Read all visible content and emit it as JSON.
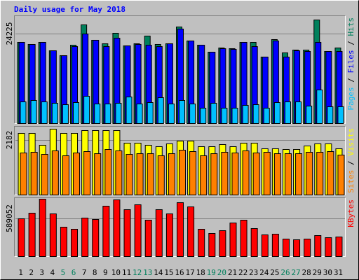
{
  "chart_data": [
    {
      "type": "bar",
      "title": "Daily usage for May 2018",
      "categories": [
        "1",
        "2",
        "3",
        "4",
        "5",
        "6",
        "7",
        "8",
        "9",
        "10",
        "11",
        "12",
        "13",
        "14",
        "15",
        "16",
        "17",
        "18",
        "19",
        "20",
        "21",
        "22",
        "23",
        "24",
        "25",
        "26",
        "27",
        "28",
        "29",
        "30",
        "31"
      ],
      "category_colors": [
        "#000000",
        "#000000",
        "#000000",
        "#000000",
        "#00805c",
        "#00805c",
        "#000000",
        "#000000",
        "#000000",
        "#000000",
        "#000000",
        "#00805c",
        "#00805c",
        "#000000",
        "#000000",
        "#000000",
        "#000000",
        "#000000",
        "#00805c",
        "#00805c",
        "#000000",
        "#000000",
        "#000000",
        "#000000",
        "#000000",
        "#00805c",
        "#00805c",
        "#000000",
        "#000000",
        "#000000",
        "#000000"
      ],
      "legend_separator": " / ",
      "ylim": [
        0,
        29145
      ],
      "yticks": [
        24225
      ],
      "series": [
        {
          "name": "Hits",
          "color": "#00805c",
          "values": [
            21954,
            21386,
            21954,
            19683,
            18358,
            21197,
            26686,
            22522,
            21576,
            24415,
            21008,
            21576,
            23658,
            21386,
            21576,
            26118,
            22333,
            21197,
            19305,
            20440,
            20251,
            21954,
            21954,
            17980,
            22711,
            19115,
            19872,
            19872,
            28010,
            19494,
            20440
          ]
        },
        {
          "name": "Files",
          "color": "#0000ff",
          "values": [
            21954,
            21386,
            21954,
            19683,
            18358,
            20819,
            24225,
            22522,
            20819,
            23090,
            21008,
            21386,
            21197,
            20819,
            21576,
            25550,
            22333,
            21197,
            19305,
            20251,
            20062,
            21954,
            20819,
            17980,
            22333,
            17980,
            19683,
            19494,
            21954,
            19494,
            19494
          ]
        },
        {
          "name": "Pages",
          "color": "#00c0ff",
          "values": [
            5867,
            6246,
            5867,
            5489,
            5110,
            5678,
            7381,
            5299,
            5299,
            5489,
            7192,
            5299,
            5678,
            7003,
            5299,
            6246,
            5299,
            4164,
            5489,
            4164,
            4164,
            4921,
            5110,
            4164,
            5678,
            5867,
            5867,
            4732,
            9085,
            4542,
            4542
          ]
        }
      ]
    },
    {
      "type": "bar",
      "ylim": [
        0,
        2741
      ],
      "yticks": [
        2182
      ],
      "series": [
        {
          "name": "Visits",
          "color": "#ffff00",
          "values": [
            2461,
            2461,
            1986,
            2629,
            2461,
            2461,
            2573,
            2573,
            2573,
            2573,
            2070,
            2070,
            1986,
            1930,
            2042,
            2154,
            2154,
            1930,
            1930,
            2014,
            1930,
            2070,
            2070,
            1846,
            1846,
            1818,
            1818,
            1958,
            2042,
            2042,
            1846
          ]
        },
        {
          "name": "Sites",
          "color": "#ff8000",
          "values": [
            1678,
            1706,
            1622,
            1762,
            1566,
            1678,
            1734,
            1650,
            1818,
            1762,
            1622,
            1650,
            1650,
            1566,
            1650,
            1790,
            1734,
            1566,
            1650,
            1706,
            1678,
            1762,
            1678,
            1706,
            1650,
            1650,
            1650,
            1706,
            1706,
            1734,
            1594
          ]
        }
      ]
    },
    {
      "type": "bar",
      "ylim": [
        0,
        916300
      ],
      "yticks": [
        589052
      ],
      "series": [
        {
          "name": "KBytes",
          "color": "#ff0000",
          "values": [
            589052,
            676296,
            894456,
            665388,
            458136,
            425412,
            599940,
            578124,
            785376,
            883548,
            730836,
            807192,
            567216,
            730836,
            665388,
            839916,
            774468,
            425412,
            359964,
            403596,
            523584,
            567216,
            436320,
            338148,
            349056,
            272700,
            261792,
            272700,
            327240,
            294516,
            305424
          ]
        }
      ]
    }
  ]
}
